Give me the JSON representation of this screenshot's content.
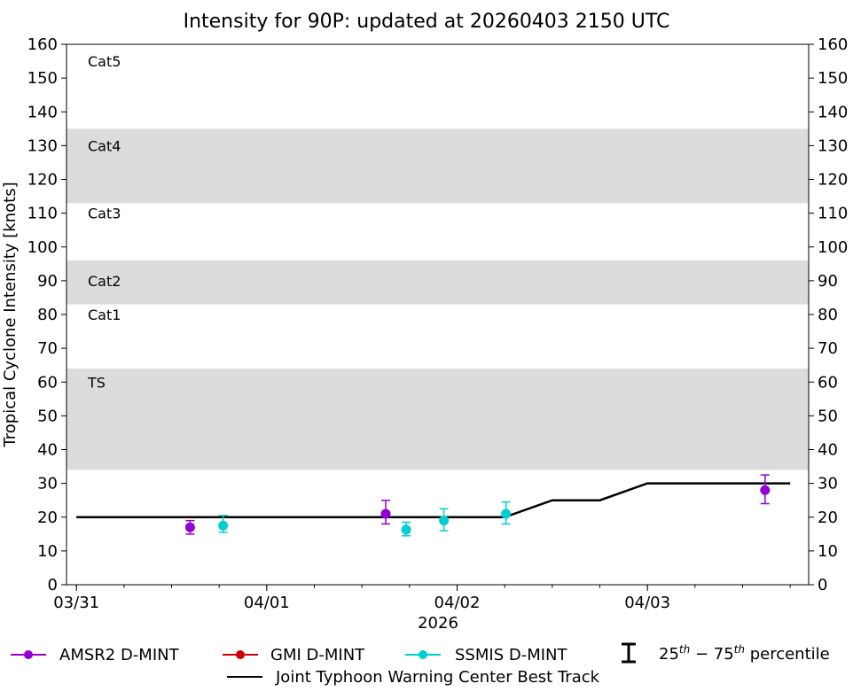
{
  "chart_data": {
    "type": "scatter",
    "title": "Intensity for 90P: updated at 20260403 2150 UTC",
    "xlabel": "2026",
    "ylabel": "Tropical Cyclone Intensity [knots]",
    "xlim": [
      "2026-03-30 22:45",
      "2026-04-03 20:20"
    ],
    "ylim": [
      0,
      160
    ],
    "yticks": [
      0,
      10,
      20,
      30,
      40,
      50,
      60,
      70,
      80,
      90,
      100,
      110,
      120,
      130,
      140,
      150,
      160
    ],
    "xticks": [
      {
        "t": "2026-03-31 00:00",
        "label": "03/31"
      },
      {
        "t": "2026-04-01 00:00",
        "label": "04/01"
      },
      {
        "t": "2026-04-02 00:00",
        "label": "04/02"
      },
      {
        "t": "2026-04-03 00:00",
        "label": "04/03"
      }
    ],
    "grid": false,
    "category_bands": [
      {
        "label": "TS",
        "range": [
          34,
          64
        ],
        "shaded": true,
        "label_y": 60
      },
      {
        "label": "Cat1",
        "range": [
          64,
          83
        ],
        "shaded": false,
        "label_y": 80
      },
      {
        "label": "Cat2",
        "range": [
          83,
          96
        ],
        "shaded": true,
        "label_y": 90
      },
      {
        "label": "Cat3",
        "range": [
          96,
          113
        ],
        "shaded": false,
        "label_y": 110
      },
      {
        "label": "Cat4",
        "range": [
          113,
          135
        ],
        "shaded": true,
        "label_y": 130
      },
      {
        "label": "Cat5",
        "range": [
          135,
          160
        ],
        "shaded": false,
        "label_y": 155
      }
    ],
    "band_color": "#dcdcdc",
    "series": [
      {
        "name": "AMSR2 D-MINT",
        "color": "#9400d3",
        "points": [
          {
            "t": "2026-03-31 14:20",
            "y": 17,
            "p25": 15,
            "p75": 19
          },
          {
            "t": "2026-04-01 15:00",
            "y": 21,
            "p25": 18,
            "p75": 25
          },
          {
            "t": "2026-04-03 14:50",
            "y": 28,
            "p25": 24,
            "p75": 32.5
          }
        ]
      },
      {
        "name": "GMI D-MINT",
        "color": "#cc0000",
        "points": []
      },
      {
        "name": "SSMIS D-MINT",
        "color": "#00ced1",
        "points": [
          {
            "t": "2026-03-31 18:30",
            "y": 17.5,
            "p25": 15.5,
            "p75": 20.5
          },
          {
            "t": "2026-04-01 17:35",
            "y": 16.3,
            "p25": 14.5,
            "p75": 18.5
          },
          {
            "t": "2026-04-01 22:20",
            "y": 19,
            "p25": 16,
            "p75": 22.5
          },
          {
            "t": "2026-04-02 06:10",
            "y": 21,
            "p25": 18,
            "p75": 24.5
          }
        ]
      }
    ],
    "best_track": {
      "name": "Joint Typhoon Warning Center Best Track",
      "color": "#000000",
      "points": [
        {
          "t": "2026-03-31 00:00",
          "y": 20
        },
        {
          "t": "2026-04-02 06:00",
          "y": 20
        },
        {
          "t": "2026-04-02 12:00",
          "y": 25
        },
        {
          "t": "2026-04-02 18:00",
          "y": 25
        },
        {
          "t": "2026-04-03 00:00",
          "y": 30
        },
        {
          "t": "2026-04-03 18:00",
          "y": 30
        }
      ]
    },
    "legend": {
      "placement": "bottom",
      "percentile_label_pre": "25",
      "percentile_sup1": "th",
      "percentile_mid": " − 75",
      "percentile_sup2": "th",
      "percentile_post": " percentile"
    }
  }
}
